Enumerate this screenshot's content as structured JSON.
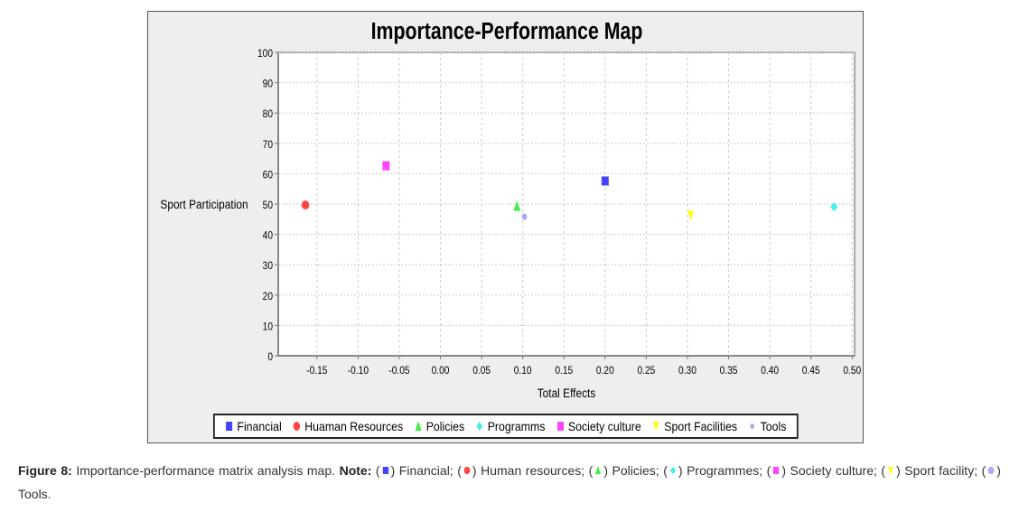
{
  "chart_data": {
    "type": "scatter",
    "title": "Importance-Performance Map",
    "xlabel": "Total Effects",
    "ylabel": "Sport Participation",
    "xlim": [
      -0.197,
      0.503
    ],
    "ylim": [
      0,
      100
    ],
    "xticks": [
      -0.15,
      -0.1,
      -0.05,
      0.0,
      0.05,
      0.1,
      0.15,
      0.2,
      0.25,
      0.3,
      0.35,
      0.4,
      0.45,
      0.5
    ],
    "xtick_labels": [
      "-0.15",
      "-0.10",
      "-0.05",
      "0.00",
      "0.05",
      "0.10",
      "0.15",
      "0.20",
      "0.25",
      "0.30",
      "0.35",
      "0.40",
      "0.45",
      "0.50"
    ],
    "yticks": [
      0,
      10,
      20,
      30,
      40,
      50,
      60,
      70,
      80,
      90,
      100
    ],
    "ytick_labels": [
      "0",
      "10",
      "20",
      "30",
      "40",
      "50",
      "60",
      "70",
      "80",
      "90",
      "100"
    ],
    "grid": true,
    "legend_position": "bottom",
    "series": [
      {
        "name": "Financial",
        "shape": "square",
        "color": "#4444ff",
        "x": 0.2,
        "y": 57.6
      },
      {
        "name": "Huaman Resources",
        "shape": "circle",
        "color": "#ff4444",
        "x": -0.164,
        "y": 49.7
      },
      {
        "name": "Policies",
        "shape": "triangle-up",
        "color": "#44ee44",
        "x": 0.093,
        "y": 49.3
      },
      {
        "name": "Programms",
        "shape": "diamond",
        "color": "#44eeee",
        "x": 0.478,
        "y": 49.1
      },
      {
        "name": "Society culture",
        "shape": "square",
        "color": "#ff44ff",
        "x": -0.066,
        "y": 62.6
      },
      {
        "name": "Sport Facilities",
        "shape": "triangle-down",
        "color": "#ffff22",
        "x": 0.304,
        "y": 46.4
      },
      {
        "name": "Tools",
        "shape": "circle",
        "color": "#aaaaee",
        "x": 0.102,
        "y": 45.8
      }
    ]
  },
  "caption": {
    "label": "Figure 8:",
    "text": "Importance-performance matrix analysis map.",
    "note_label": "Note:",
    "items": [
      "Financial;",
      "Human resources;",
      "Policies;",
      "Programmes;",
      "Society culture;",
      "Sport facility;",
      "Tools."
    ]
  }
}
